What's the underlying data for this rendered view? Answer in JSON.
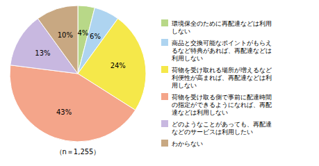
{
  "chart_data": {
    "type": "pie",
    "categories": [
      "環境保全のために再配達などは利用\nしない",
      "商品と交換可能なポイントがもらえ\nるなど特典があれば、再配達などは\n利用しない",
      "荷物を受け取れる場所が増えるなど\n利便性が高まれば、再配達などは利\n用しない",
      "荷物を受け取る側で事前に配達時間\nの指定ができるようになれば、再配\n達などは利用しない",
      "どのようなことがあっても、再配達\nなどのサービスは利用したい",
      "わからない"
    ],
    "values": [
      4,
      6,
      24,
      43,
      13,
      10
    ],
    "value_labels": [
      "4%",
      "6%",
      "24%",
      "43%",
      "13%",
      "10%"
    ],
    "colors": [
      "#b8d888",
      "#aed4f0",
      "#f5e84a",
      "#f4a58a",
      "#c8b8e0",
      "#c8a882"
    ],
    "data_labels": true,
    "legend": "right",
    "annotations": [
      "（n＝1,255）"
    ]
  }
}
